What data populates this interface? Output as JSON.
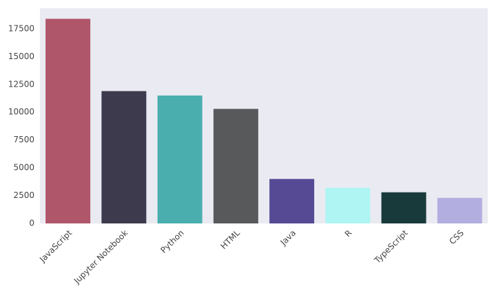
{
  "chart_data": {
    "type": "bar",
    "categories": [
      "JavaScript",
      "Jupyter Notebook",
      "Python",
      "HTML",
      "Java",
      "R",
      "TypeScript",
      "CSS"
    ],
    "values": [
      18400,
      11900,
      11500,
      10300,
      4000,
      3200,
      2800,
      2300
    ],
    "colors": [
      "#b0566b",
      "#3e3a4d",
      "#4aaeae",
      "#58595b",
      "#554a93",
      "#aef5f3",
      "#193a3a",
      "#b2aee0"
    ],
    "ylim": [
      0,
      19350
    ],
    "yticks": [
      0,
      2500,
      5000,
      7500,
      10000,
      12500,
      15000,
      17500
    ]
  }
}
